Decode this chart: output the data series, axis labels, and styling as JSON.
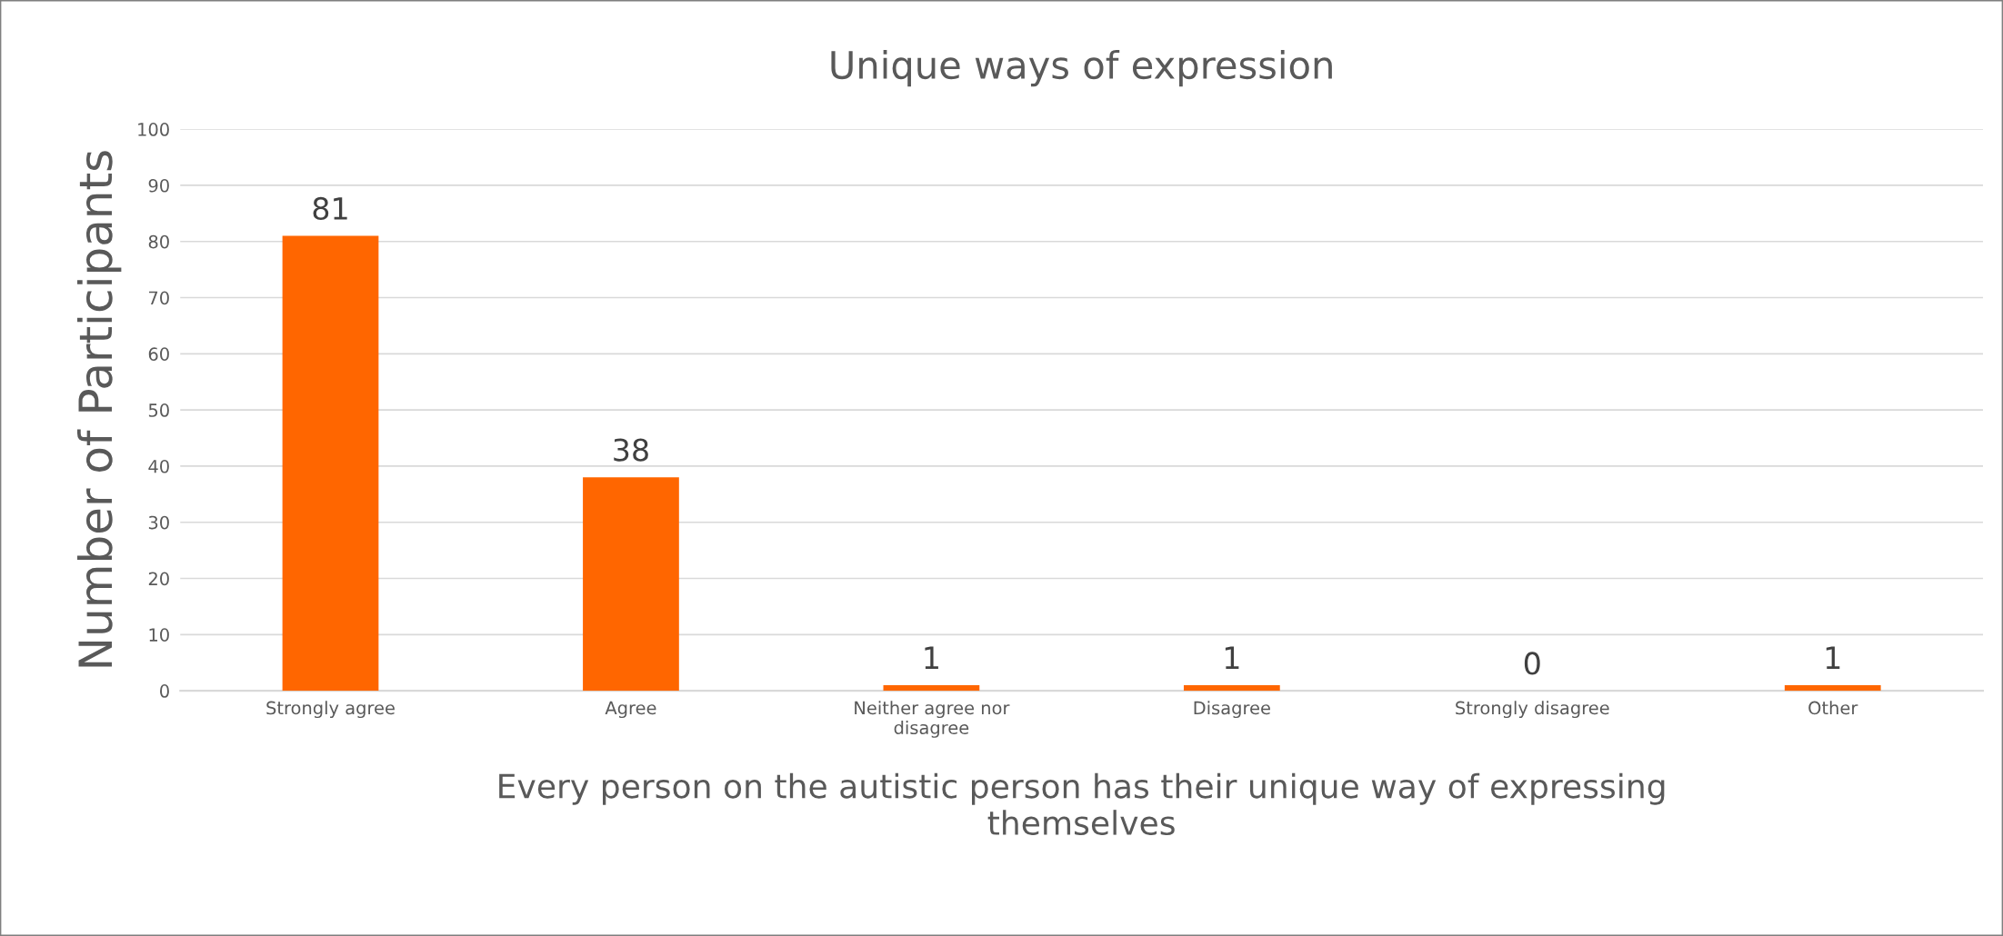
{
  "chart_data": {
    "type": "bar",
    "title": "Unique ways of expression",
    "xlabel": "Every person on the autistic person has their unique way of expressing\nthemselves",
    "ylabel": "Number of Participants",
    "categories": [
      "Strongly agree",
      "Agree",
      "Neither agree nor\ndisagree",
      "Disagree",
      "Strongly disagree",
      "Other"
    ],
    "values": [
      81,
      38,
      1,
      1,
      0,
      1
    ],
    "color": "#ff6600",
    "ylim": [
      0,
      100
    ],
    "yticks": [
      0,
      10,
      20,
      30,
      40,
      50,
      60,
      70,
      80,
      90,
      100
    ],
    "grid": "y",
    "data_labels": true,
    "legend": false
  }
}
